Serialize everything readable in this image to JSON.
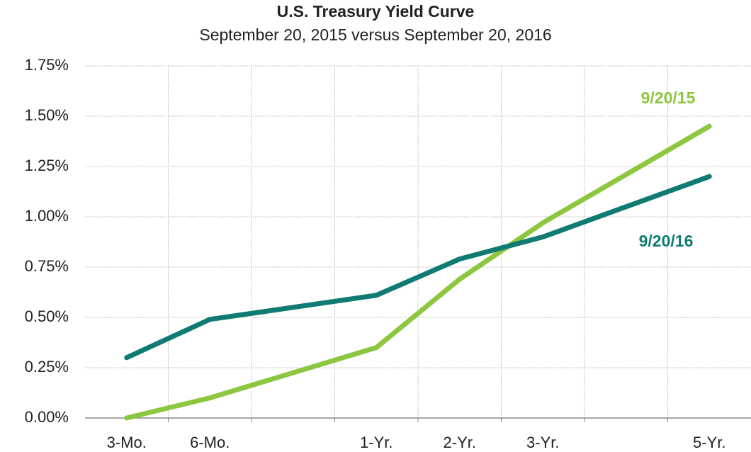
{
  "chart_data": {
    "type": "line",
    "title": "U.S. Treasury Yield Curve",
    "subtitle": "September 20, 2015 versus September 20, 2016",
    "x": [
      0.5,
      1.5,
      3.5,
      4.5,
      5.5,
      7.5
    ],
    "xlim": [
      0,
      8
    ],
    "xticks": [
      {
        "value": 0.5,
        "label": "3-Mo."
      },
      {
        "value": 1.5,
        "label": "6-Mo."
      },
      {
        "value": 3.5,
        "label": "1-Yr."
      },
      {
        "value": 4.5,
        "label": "2-Yr."
      },
      {
        "value": 5.5,
        "label": "3-Yr."
      },
      {
        "value": 7.5,
        "label": "5-Yr."
      }
    ],
    "ylim": [
      0,
      1.75
    ],
    "yticks": [
      {
        "value": 0,
        "label": "0.00%"
      },
      {
        "value": 0.25,
        "label": "0.25%"
      },
      {
        "value": 0.5,
        "label": "0.50%"
      },
      {
        "value": 0.75,
        "label": "0.75%"
      },
      {
        "value": 1.0,
        "label": "1.00%"
      },
      {
        "value": 1.25,
        "label": "1.25%"
      },
      {
        "value": 1.5,
        "label": "1.50%"
      },
      {
        "value": 1.75,
        "label": "1.75%"
      }
    ],
    "grid": true,
    "series": [
      {
        "name": "9/20/15",
        "color": "#8dc63f",
        "values": [
          0.0,
          0.1,
          0.35,
          0.69,
          0.97,
          1.45
        ]
      },
      {
        "name": "9/20/16",
        "color": "#0f7b72",
        "values": [
          0.3,
          0.49,
          0.61,
          0.79,
          0.9,
          1.2
        ]
      }
    ]
  }
}
